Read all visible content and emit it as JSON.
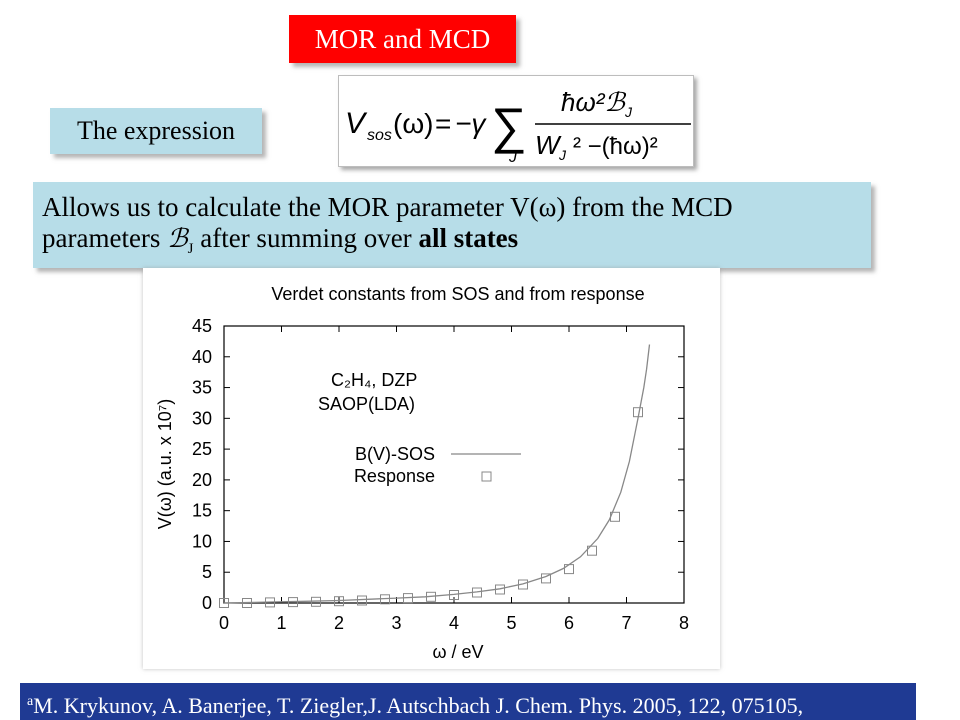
{
  "slide": {
    "title": "MOR and MCD",
    "expression_label": "The expression",
    "description": {
      "line1_pre": "Allows us to calculate the MOR parameter V(ω) from the MCD",
      "line2_pre": "parameters ",
      "line2_symbol": "ℬ",
      "line2_symbol_sub": "J",
      "line2_mid": " after summing over ",
      "line2_bold": "all states"
    },
    "footer": {
      "marker": "a",
      "text": "M. Krykunov, A. Banerjee, T. Ziegler,J. Autschbach J. Chem. Phys. 2005, 122, 075105,"
    }
  },
  "formula": {
    "lhs": "V",
    "lhs_sub": "sos",
    "lhs_arg": "(ω)",
    "equals": "=",
    "neg_gamma": "−γ",
    "sum_symbol": "∑",
    "sum_index": "J",
    "numerator": "ħω²ℬ",
    "numerator_sub": "J",
    "denominator": "W",
    "denominator_sub": "J",
    "denominator_rest": "² −(ħω)²"
  },
  "chart_data": {
    "type": "line",
    "title": "Verdet constants from SOS and from response",
    "xlabel": "ω / eV",
    "ylabel": "V(ω) (a.u. x 10⁷)",
    "xlim": [
      0,
      8
    ],
    "ylim": [
      0,
      45
    ],
    "xticks": [
      0,
      1,
      2,
      3,
      4,
      5,
      6,
      7,
      8
    ],
    "yticks": [
      0,
      5,
      10,
      15,
      20,
      25,
      30,
      35,
      40,
      45
    ],
    "grid": false,
    "legend_position": "top-left",
    "annotation_line1": "C₂H₄, DZP",
    "annotation_line2": "SAOP(LDA)",
    "series": [
      {
        "name": "B(V)-SOS",
        "style": "line",
        "x": [
          0.0,
          0.5,
          1.0,
          1.5,
          2.0,
          2.5,
          3.0,
          3.5,
          4.0,
          4.4,
          4.8,
          5.2,
          5.6,
          5.9,
          6.2,
          6.5,
          6.7,
          6.9,
          7.05,
          7.2,
          7.3,
          7.35,
          7.4
        ],
        "y": [
          0.0,
          0.1,
          0.2,
          0.3,
          0.4,
          0.6,
          0.8,
          1.0,
          1.4,
          1.8,
          2.3,
          3.1,
          4.3,
          5.6,
          7.5,
          10.5,
          13.5,
          18.0,
          23.0,
          30.0,
          35.0,
          38.0,
          42.0
        ],
        "color": "#888888"
      },
      {
        "name": "Response",
        "style": "marker",
        "marker": "open-square",
        "x": [
          0.0,
          0.4,
          0.8,
          1.2,
          1.6,
          2.0,
          2.4,
          2.8,
          3.2,
          3.6,
          4.0,
          4.4,
          4.8,
          5.2,
          5.6,
          6.0,
          6.4,
          6.8,
          7.2
        ],
        "y": [
          0.0,
          0.0,
          0.1,
          0.15,
          0.2,
          0.3,
          0.4,
          0.6,
          0.8,
          1.0,
          1.3,
          1.7,
          2.2,
          3.0,
          4.0,
          5.5,
          8.5,
          14.0,
          31.0
        ],
        "color": "#888888"
      }
    ]
  }
}
